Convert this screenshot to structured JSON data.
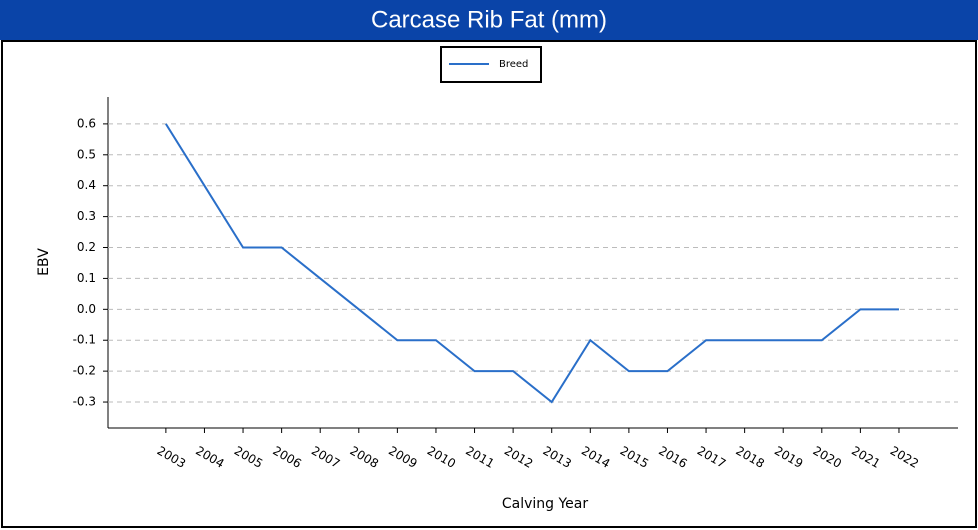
{
  "chart_data": {
    "type": "line",
    "title": "Carcase Rib Fat (mm)",
    "x_label": "Calving Year",
    "y_label": "EBV",
    "x": [
      2003,
      2004,
      2005,
      2006,
      2007,
      2008,
      2009,
      2010,
      2011,
      2012,
      2013,
      2014,
      2015,
      2016,
      2017,
      2018,
      2019,
      2020,
      2021,
      2022
    ],
    "series": [
      {
        "name": "Breed",
        "color": "#2a6fc9",
        "values": [
          0.6,
          0.4,
          0.2,
          0.2,
          0.1,
          0.0,
          -0.1,
          -0.1,
          -0.2,
          -0.2,
          -0.3,
          -0.1,
          -0.2,
          -0.2,
          -0.1,
          -0.1,
          -0.1,
          -0.1,
          0.0,
          0.0
        ]
      }
    ],
    "xlim": [
      2001.5,
      2023.53
    ],
    "xticks": [
      2003,
      2004,
      2005,
      2006,
      2007,
      2008,
      2009,
      2010,
      2011,
      2012,
      2013,
      2014,
      2015,
      2016,
      2017,
      2018,
      2019,
      2020,
      2021,
      2022
    ],
    "ylim": [
      -0.384,
      0.687
    ],
    "yticks": [
      0.6,
      0.5,
      0.4,
      0.3,
      0.2,
      0.1,
      {
        "value": 0,
        "label": "0.0"
      },
      -0.1,
      -0.2,
      -0.3
    ],
    "grid": true,
    "legend": "top"
  }
}
